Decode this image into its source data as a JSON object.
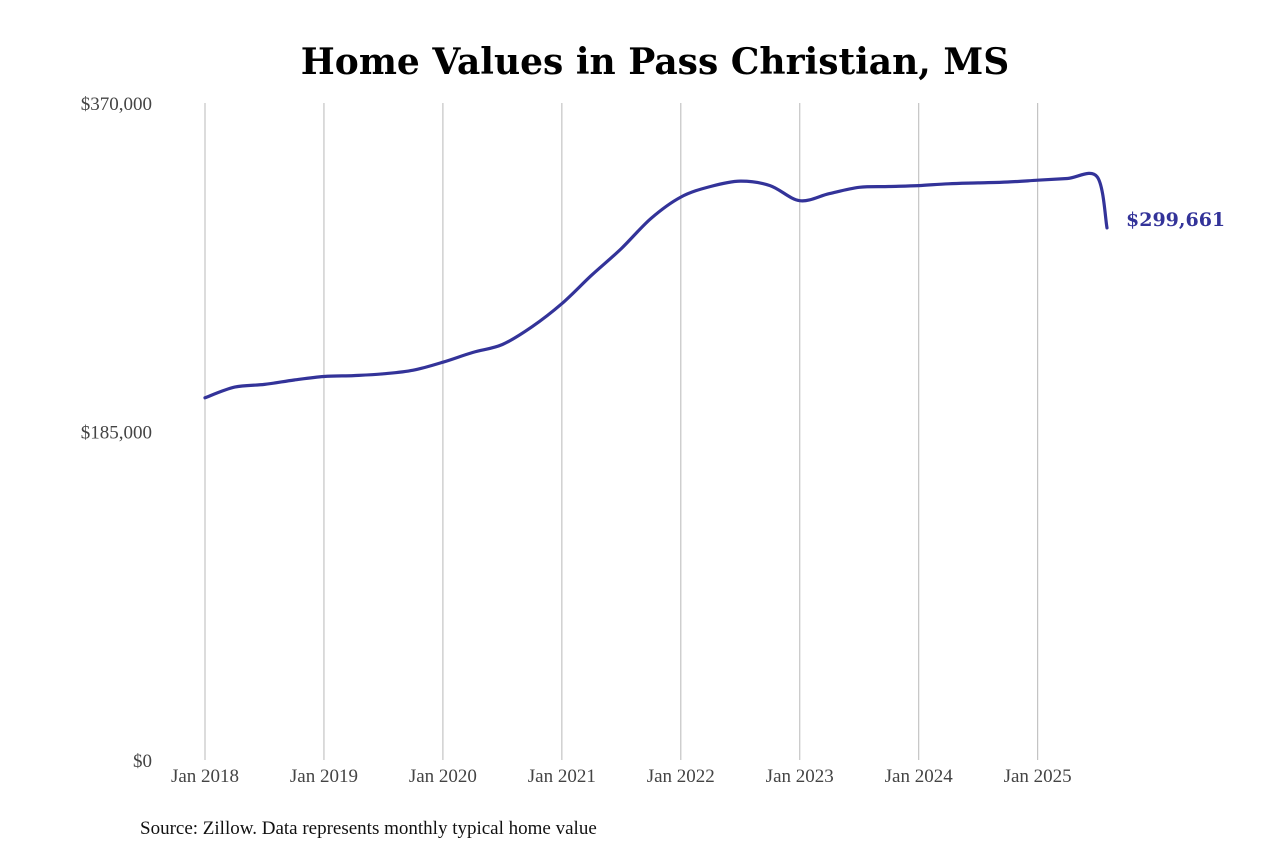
{
  "chart_data": {
    "type": "line",
    "title": "Home Values in Pass Christian, MS",
    "source_note": "Source: Zillow. Data represents monthly typical home value",
    "ylim": [
      0,
      370000
    ],
    "yticks": [
      {
        "value": 0,
        "label": "$0"
      },
      {
        "value": 185000,
        "label": "$185,000"
      },
      {
        "value": 370000,
        "label": "$370,000"
      }
    ],
    "xticks": [
      "Jan 2018",
      "Jan 2019",
      "Jan 2020",
      "Jan 2021",
      "Jan 2022",
      "Jan 2023",
      "Jan 2024",
      "Jan 2025"
    ],
    "xlim": [
      "2018-01",
      "2025-08"
    ],
    "grid": "vertical",
    "line_color": "#333399",
    "end_label": "$299,661",
    "series": [
      {
        "x": [
          "2018-01",
          "2018-04",
          "2018-07",
          "2018-10",
          "2019-01",
          "2019-04",
          "2019-07",
          "2019-10",
          "2020-01",
          "2020-04",
          "2020-07",
          "2020-10",
          "2021-01",
          "2021-04",
          "2021-07",
          "2021-10",
          "2022-01",
          "2022-04",
          "2022-07",
          "2022-10",
          "2023-01",
          "2023-04",
          "2023-07",
          "2023-10",
          "2024-01",
          "2024-04",
          "2024-07",
          "2024-10",
          "2025-01",
          "2025-04",
          "2025-07",
          "2025-08"
        ],
        "values": [
          204000,
          210000,
          211500,
          214000,
          216000,
          216500,
          217500,
          219500,
          224000,
          229500,
          234000,
          244000,
          257000,
          273000,
          288000,
          305000,
          317000,
          323000,
          326000,
          323500,
          315000,
          319000,
          322500,
          323000,
          323500,
          324500,
          325000,
          325500,
          326500,
          327500,
          328500,
          299661
        ]
      }
    ]
  }
}
